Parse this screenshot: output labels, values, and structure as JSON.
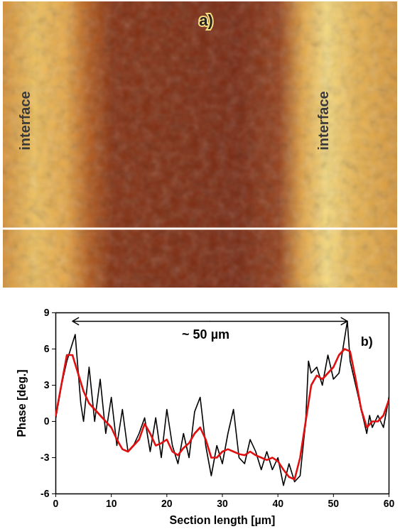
{
  "panel_a": {
    "label": "a)",
    "annotations": [
      "interface",
      "interface"
    ]
  },
  "chart_data": {
    "type": "line",
    "label": "b)",
    "xlabel": "Section length [µm]",
    "ylabel": "Phase [deg.]",
    "xlim": [
      0,
      60
    ],
    "xticks": [
      0,
      10,
      20,
      30,
      40,
      50,
      60
    ],
    "ylim": [
      -6,
      9
    ],
    "yticks": [
      -6,
      -3,
      0,
      3,
      6,
      9
    ],
    "series": [
      {
        "color": "#000000",
        "line_style": "solid",
        "x": [
          0,
          1,
          2,
          3.5,
          4.5,
          5,
          6,
          7,
          8,
          9,
          10,
          11,
          12,
          13,
          14,
          15,
          16,
          17,
          18,
          19,
          20,
          21,
          22,
          23,
          24,
          25,
          26,
          27,
          28,
          29,
          30,
          31,
          32,
          33,
          34,
          35,
          36,
          37,
          38,
          39,
          40,
          41,
          42,
          43,
          44,
          45,
          45.5,
          46,
          47,
          48,
          49,
          50,
          51,
          52.5,
          53,
          54,
          55,
          56,
          56.5,
          57,
          58,
          59,
          60
        ],
        "values": [
          0.3,
          3,
          5,
          7.2,
          1.5,
          0,
          4.5,
          0,
          3.5,
          -1,
          2,
          -2,
          1,
          -2.5,
          -2,
          -1,
          0.3,
          -2.5,
          0.3,
          -3,
          1,
          -2,
          -3.5,
          -1,
          -3,
          0.8,
          2,
          -2,
          -4.5,
          -2,
          -3.5,
          -1,
          1,
          -3,
          -3.5,
          -1.5,
          -2.5,
          -4,
          -2.5,
          -4,
          -3,
          -5.3,
          -3.5,
          -5,
          -4.5,
          0,
          5,
          4,
          4.5,
          3,
          5.5,
          3.5,
          4,
          8.3,
          5,
          3,
          1,
          -1,
          0.5,
          -0.5,
          0.5,
          -0.5,
          2
        ]
      },
      {
        "color": "#e01010",
        "line_style": "solid",
        "x": [
          0,
          1,
          2,
          3,
          4,
          5,
          6,
          7,
          8,
          9,
          10,
          11,
          12,
          13,
          14,
          15,
          16,
          17,
          18,
          19,
          20,
          21,
          22,
          23,
          24,
          25,
          26,
          27,
          28,
          29,
          30,
          31,
          32,
          33,
          34,
          35,
          36,
          37,
          38,
          39,
          40,
          41,
          42,
          43,
          44,
          45,
          46,
          47,
          48,
          49,
          50,
          51,
          52,
          53,
          54,
          55,
          56,
          57,
          58,
          59,
          60
        ],
        "values": [
          0.5,
          3,
          5.5,
          5.5,
          4,
          2.5,
          1.5,
          1,
          0.5,
          0,
          -0.5,
          -1.5,
          -2.3,
          -2.5,
          -2,
          -1.5,
          -0.2,
          -1,
          -2,
          -1.8,
          -1.5,
          -2.5,
          -2.8,
          -2.2,
          -1.8,
          -1,
          -0.5,
          -1.5,
          -3,
          -3,
          -2.5,
          -2.3,
          -2.5,
          -2.7,
          -2.8,
          -2.5,
          -2.8,
          -3,
          -3.2,
          -3,
          -3.3,
          -4,
          -4.6,
          -4.8,
          -3,
          0,
          3,
          3.8,
          3.5,
          4,
          4.5,
          5.5,
          6,
          5.8,
          3.5,
          1,
          -0.5,
          0,
          0,
          0.5,
          1.8
        ]
      }
    ],
    "annotations": [
      {
        "text": "~ 50 µm",
        "x": 27,
        "y": 7.2,
        "arrow_x": [
          3,
          52.5
        ],
        "arrow_y": 8.3
      }
    ],
    "grid": false
  }
}
